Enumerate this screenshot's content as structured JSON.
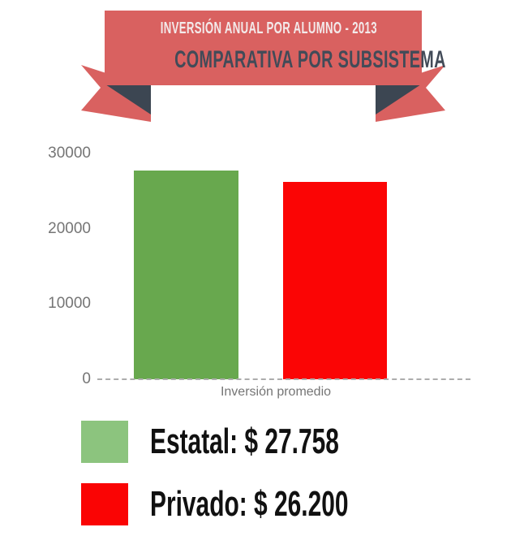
{
  "banner": {
    "title": "INVERSIÓN ANUAL POR ALUMNO - 2013",
    "subtitle": "COMPARATIVA POR SUBSISTEMA",
    "ribbon_color": "#d96160",
    "fold_color": "#3c4652",
    "title_color": "#f3eaea",
    "subtitle_color": "#424b58"
  },
  "chart_data": {
    "type": "bar",
    "title": "Inversión anual por alumno - 2013 / Comparativa por subsistema",
    "categories": [
      "Inversión promedio"
    ],
    "series": [
      {
        "name": "Estatal",
        "values": [
          27758
        ],
        "color": "#68a84e"
      },
      {
        "name": "Privado",
        "values": [
          26200
        ],
        "color": "#fb0505"
      }
    ],
    "xlabel": "Inversión promedio",
    "ylabel": "",
    "ylim": [
      0,
      30000
    ],
    "yticks": [
      0,
      10000,
      20000,
      30000
    ],
    "ytick_labels": [
      "0",
      "10000",
      "20000",
      "30000"
    ],
    "grid": false,
    "baseline_style": "dashed",
    "legend_position": "bottom"
  },
  "legend": {
    "items": [
      {
        "label": "Estatal: $ 27.758",
        "color": "#8cc47e"
      },
      {
        "label": "Privado: $ 26.200",
        "color": "#fa0404"
      }
    ]
  }
}
